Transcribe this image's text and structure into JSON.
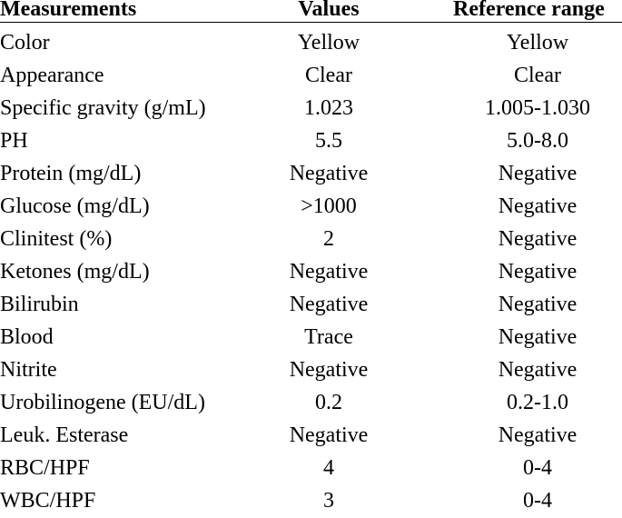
{
  "headers": {
    "measurements": "Measurements",
    "values": "Values",
    "reference_range": "Reference range"
  },
  "rows": [
    {
      "measurement": "Color",
      "value": "Yellow",
      "reference": "Yellow"
    },
    {
      "measurement": "Appearance",
      "value": "Clear",
      "reference": "Clear"
    },
    {
      "measurement": "Specific gravity (g/mL)",
      "value": "1.023",
      "reference": "1.005-1.030"
    },
    {
      "measurement": "PH",
      "value": "5.5",
      "reference": "5.0-8.0"
    },
    {
      "measurement": "Protein (mg/dL)",
      "value": "Negative",
      "reference": "Negative"
    },
    {
      "measurement": "Glucose (mg/dL)",
      "value": ">1000",
      "reference": "Negative"
    },
    {
      "measurement": "Clinitest (%)",
      "value": "2",
      "reference": "Negative"
    },
    {
      "measurement": "Ketones (mg/dL)",
      "value": "Negative",
      "reference": "Negative"
    },
    {
      "measurement": "Bilirubin",
      "value": "Negative",
      "reference": "Negative"
    },
    {
      "measurement": "Blood",
      "value": "Trace",
      "reference": "Negative"
    },
    {
      "measurement": "Nitrite",
      "value": "Negative",
      "reference": "Negative"
    },
    {
      "measurement": "Urobilinogene (EU/dL)",
      "value": "0.2",
      "reference": "0.2-1.0"
    },
    {
      "measurement": "Leuk. Esterase",
      "value": "Negative",
      "reference": "Negative"
    },
    {
      "measurement": "RBC/HPF",
      "value": "4",
      "reference": "0-4"
    },
    {
      "measurement": "WBC/HPF",
      "value": "3",
      "reference": "0-4"
    }
  ]
}
